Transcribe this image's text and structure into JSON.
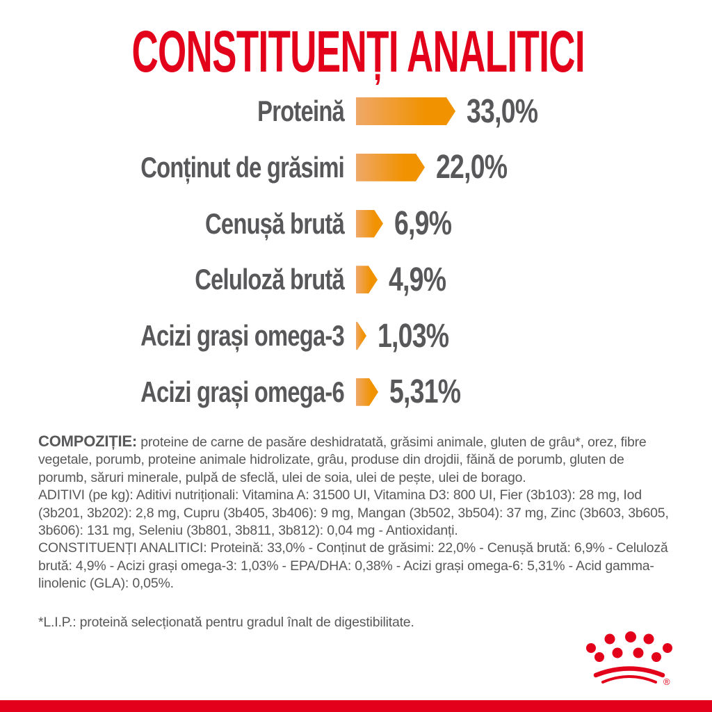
{
  "title": "CONSTITUENȚI ANALITICI",
  "colors": {
    "brand_red": "#E2001A",
    "text_gray": "#58585A",
    "bar_orange": "#F19200",
    "bar_orange_light": "#EFA869",
    "background": "#FFFFFF"
  },
  "chart_data": {
    "type": "bar",
    "orientation": "horizontal",
    "title": "CONSTITUENȚI ANALITICI",
    "categories": [
      "Proteină",
      "Conținut de grăsimi",
      "Cenușă brută",
      "Celuloză brută",
      "Acizi grași omega-3",
      "Acizi grași omega-6"
    ],
    "values": [
      33.0,
      22.0,
      6.9,
      4.9,
      1.03,
      5.31
    ],
    "value_labels": [
      "33,0%",
      "22,0%",
      "6,9%",
      "4,9%",
      "1,03%",
      "5,31%"
    ],
    "unit": "%",
    "axis": "none",
    "grid": false,
    "legend": false,
    "bar_style": "arrow-right-gradient"
  },
  "sections": {
    "composition": {
      "lead": "COMPOZIȚIE:",
      "text": "proteine de carne de pasăre deshidratată, grăsimi animale, gluten de grâu*, orez, fibre vegetale, porumb, proteine animale hidrolizate, grâu, produse din drojdii, făină de porumb, gluten de porumb, săruri minerale, pulpă de sfeclă, ulei de soia, ulei de pește, ulei de borago."
    },
    "additives": {
      "text": "ADITIVI (pe kg): Aditivi nutriționali: Vitamina A: 31500 UI, Vitamina D3: 800 UI, Fier (3b103): 28 mg, Iod (3b201, 3b202): 2,8 mg, Cupru (3b405, 3b406): 9 mg, Mangan (3b502, 3b504): 37 mg, Zinc (3b603, 3b605, 3b606): 131 mg, Seleniu (3b801, 3b811, 3b812): 0,04 mg - Antioxidanți."
    },
    "analytical": {
      "text": "CONSTITUENȚI ANALITICI: Proteină: 33,0% - Conținut de grăsimi: 22,0% - Cenușă brută: 6,9% - Celuloză brută: 4,9% - Acizi grași omega-3: 1,03% - EPA/DHA: 0,38% - Acizi grași omega-6: 5,31% - Acid gamma-linolenic (GLA): 0,05%."
    },
    "lip_note": {
      "text": "*L.I.P.: proteină selecționată pentru gradul înalt de digestibilitate."
    }
  },
  "logo": {
    "name": "royal-canin-crown",
    "registered_mark": "®"
  }
}
